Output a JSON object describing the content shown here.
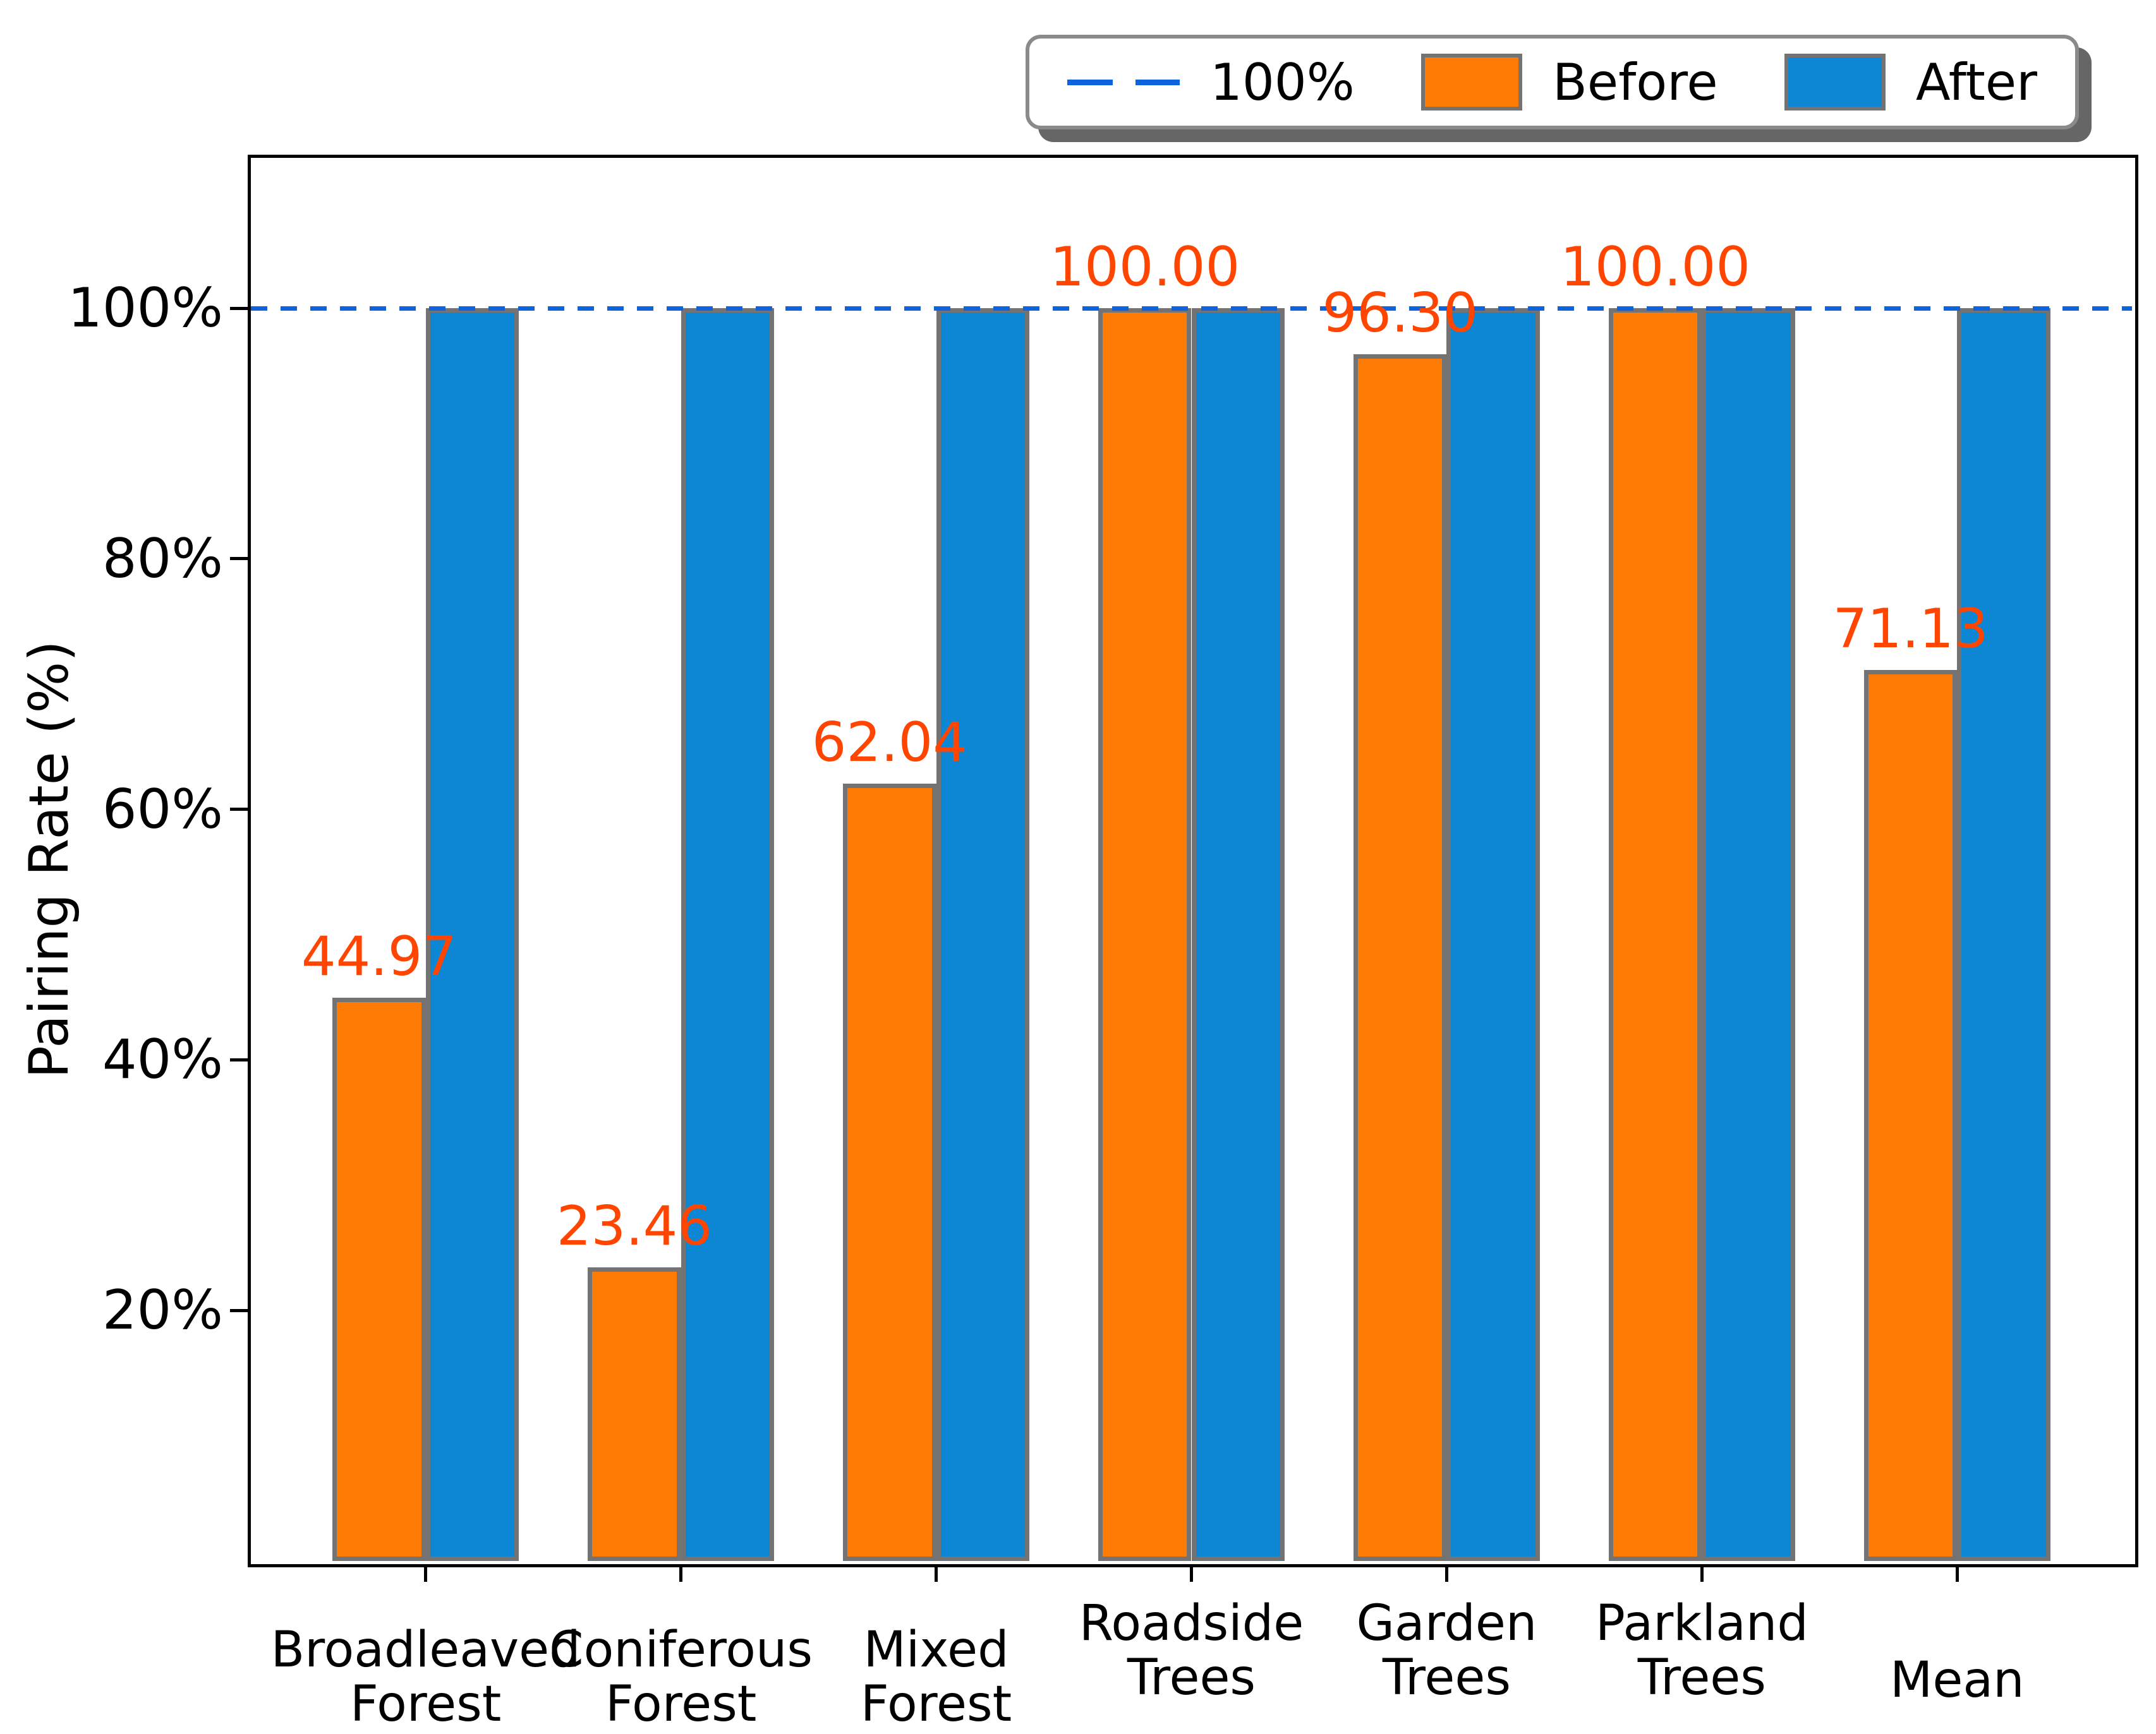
{
  "figure": {
    "background_color": "#ffffff",
    "axes_edge_color": "#000000"
  },
  "legend": {
    "items": [
      {
        "label": "100%",
        "swatch": "dashed-line",
        "color": "#0d62dd"
      },
      {
        "label": "Before",
        "swatch": "patch",
        "color": "#fe7c05"
      },
      {
        "label": "After",
        "swatch": "patch",
        "color": "#0d86d3"
      }
    ]
  },
  "chart_data": {
    "type": "bar",
    "title": "",
    "ylabel": "Pairing Rate (%)",
    "xlabel": "",
    "categories": [
      "Broadleaved\nForest",
      "Coniferous\nForest",
      "Mixed\nForest",
      "Roadside\nTrees",
      "Garden\nTrees",
      "Parkland\nTrees",
      "Mean"
    ],
    "series": [
      {
        "name": "Before",
        "color": "#fe7c05",
        "values": [
          44.97,
          23.46,
          62.04,
          100.0,
          96.3,
          100.0,
          71.13
        ]
      },
      {
        "name": "After",
        "color": "#0d86d3",
        "values": [
          100,
          100,
          100,
          100,
          100,
          100,
          100
        ]
      }
    ],
    "bar_value_labels": {
      "series": "Before",
      "labels": [
        "44.97",
        "23.46",
        "62.04",
        "100.00",
        "96.30",
        "100.00",
        "71.13"
      ],
      "color": "#ff4500"
    },
    "yticks": [
      {
        "value": 20,
        "label": "20%"
      },
      {
        "value": 40,
        "label": "40%"
      },
      {
        "value": 60,
        "label": "60%"
      },
      {
        "value": 80,
        "label": "80%"
      },
      {
        "value": 100,
        "label": "100%"
      }
    ],
    "ylim": [
      0,
      112
    ],
    "reference_line": {
      "value": 100,
      "label": "100%",
      "style": "dashed",
      "color": "#0d62dd"
    },
    "bar_edge_color": "#737373",
    "grid": false,
    "legend_position": "top-right-above-axes"
  }
}
